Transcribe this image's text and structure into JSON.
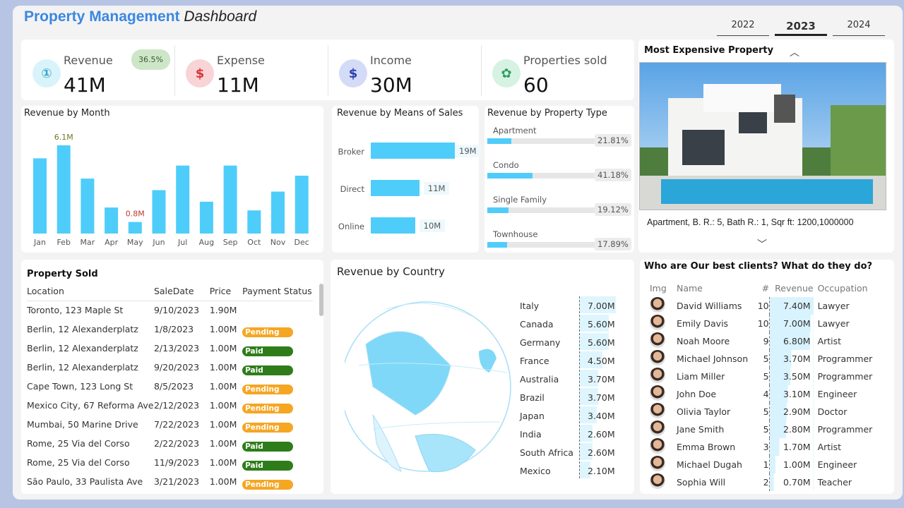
{
  "header": {
    "title_bold": "Property Management",
    "title_rest": "Dashboard",
    "years": [
      "2022",
      "2023",
      "2024"
    ],
    "selected_year": "2023"
  },
  "kpis": [
    {
      "label": "Revenue",
      "value": "41M",
      "icon": "hand-coin-icon",
      "badge": "36.5%",
      "color": "#d9f3fb",
      "fg": "#35a8c9"
    },
    {
      "label": "Expense",
      "value": "11M",
      "icon": "dollar-arrow-out-icon",
      "color": "#f8d4d6",
      "fg": "#d9363e"
    },
    {
      "label": "Income",
      "value": "30M",
      "icon": "dollar-arrow-in-icon",
      "color": "#d4dbf6",
      "fg": "#2c3fb0"
    },
    {
      "label": "Properties sold",
      "value": "60",
      "icon": "hand-plant-icon",
      "color": "#d6f2e2",
      "fg": "#2f9e5e"
    }
  ],
  "revenue_by_month": {
    "title": "Revenue by Month",
    "type": "bar",
    "categories": [
      "Jan",
      "Feb",
      "Mar",
      "Apr",
      "May",
      "Jun",
      "Jul",
      "Aug",
      "Sep",
      "Oct",
      "Nov",
      "Dec"
    ],
    "values": [
      5.2,
      6.1,
      3.8,
      1.8,
      0.8,
      3.0,
      4.7,
      2.2,
      4.7,
      1.6,
      2.9,
      4.0
    ],
    "max_label": "6.1M",
    "min_label": "0.8M",
    "unit": "M",
    "color": "#4fcdfa"
  },
  "means_of_sales": {
    "title": "Revenue by Means of Sales",
    "categories": [
      "Broker",
      "Direct",
      "Online"
    ],
    "values": [
      19,
      11,
      10
    ],
    "labels": [
      "19M",
      "11M",
      "10M"
    ]
  },
  "property_type": {
    "title": "Revenue by Property Type",
    "items": [
      {
        "label": "Apartment",
        "pct": 21.81,
        "text": "21.81%"
      },
      {
        "label": "Condo",
        "pct": 41.18,
        "text": "41.18%"
      },
      {
        "label": "Single Family",
        "pct": 19.12,
        "text": "19.12%"
      },
      {
        "label": "Townhouse",
        "pct": 17.89,
        "text": "17.89%"
      }
    ]
  },
  "expensive": {
    "title": "Most Expensive Property",
    "caption": "Apartment, B. R.: 5, Bath R.: 1, Sqr ft: 1200,1000000"
  },
  "property_sold": {
    "title": "Property Sold",
    "columns": [
      "Location",
      "SaleDate",
      "Price",
      "Payment Status"
    ],
    "rows": [
      [
        "Toronto, 123 Maple St",
        "9/10/2023",
        "1.90M",
        ""
      ],
      [
        "Berlin, 12 Alexanderplatz",
        "1/8/2023",
        "1.00M",
        "Pending"
      ],
      [
        "Berlin, 12 Alexanderplatz",
        "2/13/2023",
        "1.00M",
        "Paid"
      ],
      [
        "Berlin, 12 Alexanderplatz",
        "9/20/2023",
        "1.00M",
        "Paid"
      ],
      [
        "Cape Town, 123 Long St",
        "8/5/2023",
        "1.00M",
        "Pending"
      ],
      [
        "Mexico City, 67 Reforma Ave",
        "2/12/2023",
        "1.00M",
        "Pending"
      ],
      [
        "Mumbai, 50 Marine Drive",
        "7/22/2023",
        "1.00M",
        "Pending"
      ],
      [
        "Rome, 25 Via del Corso",
        "2/22/2023",
        "1.00M",
        "Paid"
      ],
      [
        "Rome, 25 Via del Corso",
        "11/9/2023",
        "1.00M",
        "Paid"
      ],
      [
        "São Paulo, 33 Paulista Ave",
        "3/21/2023",
        "1.00M",
        "Pending"
      ]
    ],
    "status_colors": {
      "Pending": "#f5a623",
      "Paid": "#2e7d1a"
    }
  },
  "country": {
    "title": "Revenue by Country",
    "items": [
      [
        "Italy",
        "7.00M",
        7.0
      ],
      [
        "Canada",
        "5.60M",
        5.6
      ],
      [
        "Germany",
        "5.60M",
        5.6
      ],
      [
        "France",
        "4.50M",
        4.5
      ],
      [
        "Australia",
        "3.70M",
        3.7
      ],
      [
        "Brazil",
        "3.70M",
        3.7
      ],
      [
        "Japan",
        "3.40M",
        3.4
      ],
      [
        "India",
        "2.60M",
        2.6
      ],
      [
        "South Africa",
        "2.60M",
        2.6
      ],
      [
        "Mexico",
        "2.10M",
        2.1
      ]
    ]
  },
  "clients": {
    "title": "Who are Our best clients? What do they do?",
    "columns": [
      "Img",
      "Name",
      "#",
      "Revenue",
      "Occupation"
    ],
    "rows": [
      [
        "David Williams",
        "10",
        "7.40M",
        "Lawyer",
        7.4
      ],
      [
        "Emily Davis",
        "10",
        "7.00M",
        "Lawyer",
        7.0
      ],
      [
        "Noah Moore",
        "9",
        "6.80M",
        "Artist",
        6.8
      ],
      [
        "Michael Johnson",
        "5",
        "3.70M",
        "Programmer",
        3.7
      ],
      [
        "Liam Miller",
        "5",
        "3.50M",
        "Programmer",
        3.5
      ],
      [
        "John Doe",
        "4",
        "3.10M",
        "Engineer",
        3.1
      ],
      [
        "Olivia Taylor",
        "5",
        "2.90M",
        "Doctor",
        2.9
      ],
      [
        "Jane Smith",
        "5",
        "2.80M",
        "Programmer",
        2.8
      ],
      [
        "Emma Brown",
        "3",
        "1.70M",
        "Artist",
        1.7
      ],
      [
        "Michael Dugah",
        "1",
        "1.00M",
        "Engineer",
        1.0
      ],
      [
        "Sophia Will",
        "2",
        "0.70M",
        "Teacher",
        0.7
      ]
    ]
  }
}
